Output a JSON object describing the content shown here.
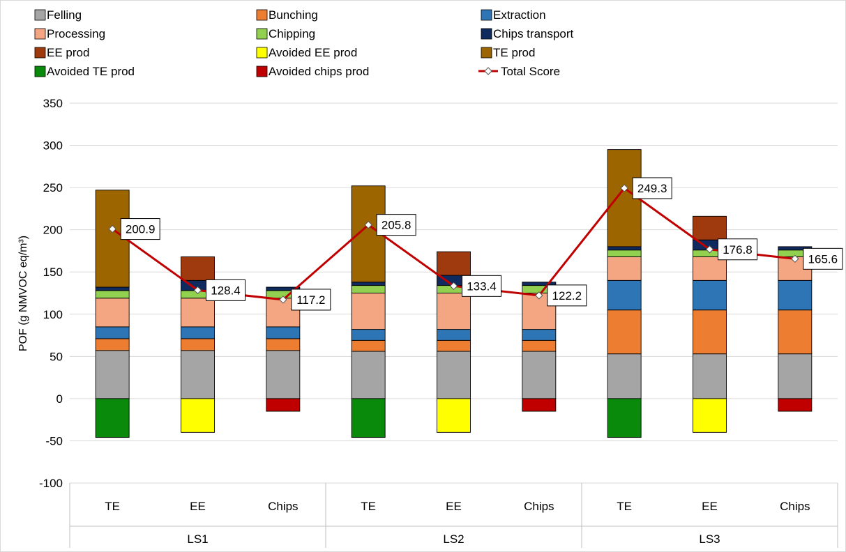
{
  "chart_data": {
    "type": "bar",
    "stacked": true,
    "ylabel": "POF (g NMVOC eq/m³)",
    "ylim": [
      -100,
      350
    ],
    "yticks": [
      -100,
      -50,
      0,
      50,
      100,
      150,
      200,
      250,
      300,
      350
    ],
    "grid": true,
    "legend_position": "top",
    "groups": [
      "LS1",
      "LS2",
      "LS3"
    ],
    "categories": [
      "TE",
      "EE",
      "Chips",
      "TE",
      "EE",
      "Chips",
      "TE",
      "EE",
      "Chips"
    ],
    "series": [
      {
        "name": "Felling",
        "color": "#A5A5A5",
        "values": [
          57,
          57,
          57,
          56,
          56,
          56,
          53,
          53,
          53
        ]
      },
      {
        "name": "Bunching",
        "color": "#ED7D31",
        "values": [
          14,
          14,
          14,
          13,
          13,
          13,
          52,
          52,
          52
        ]
      },
      {
        "name": "Extraction",
        "color": "#2E75B6",
        "values": [
          14,
          14,
          14,
          13,
          13,
          13,
          35,
          35,
          35
        ]
      },
      {
        "name": "Processing",
        "color": "#F4A582",
        "values": [
          34,
          34,
          34,
          43,
          43,
          43,
          28,
          28,
          28
        ]
      },
      {
        "name": "Chipping",
        "color": "#92D050",
        "values": [
          9,
          9,
          9,
          9,
          9,
          9,
          8,
          8,
          8
        ]
      },
      {
        "name": "Chips transport",
        "color": "#0E2A5E",
        "values": [
          4,
          12,
          4,
          4,
          12,
          4,
          4,
          12,
          4
        ]
      },
      {
        "name": "EE prod",
        "color": "#9E3A0E",
        "values": [
          0,
          28,
          0,
          0,
          28,
          0,
          0,
          28,
          0
        ]
      },
      {
        "name": "Avoided EE prod",
        "color": "#FFFF00",
        "values": [
          0,
          -40,
          0,
          0,
          -40,
          0,
          0,
          -40,
          0
        ]
      },
      {
        "name": "TE prod",
        "color": "#9C6500",
        "values": [
          115,
          0,
          0,
          114,
          0,
          0,
          115,
          0,
          0
        ]
      },
      {
        "name": "Avoided TE prod",
        "color": "#0A8A0A",
        "values": [
          -46,
          0,
          0,
          -46,
          0,
          0,
          -46,
          0,
          0
        ]
      },
      {
        "name": "Avoided chips prod",
        "color": "#C00000",
        "values": [
          0,
          0,
          -15,
          0,
          0,
          -15,
          0,
          0,
          -15
        ]
      }
    ],
    "total_score": {
      "name": "Total Score",
      "color": "#C00000",
      "values": [
        200.9,
        128.4,
        117.2,
        205.8,
        133.4,
        122.2,
        249.3,
        176.8,
        165.6
      ],
      "labels": [
        "200.9",
        "128.4",
        "117.2",
        "205.8",
        "133.4",
        "122.2",
        "249.3",
        "176.8",
        "165.6"
      ]
    }
  }
}
